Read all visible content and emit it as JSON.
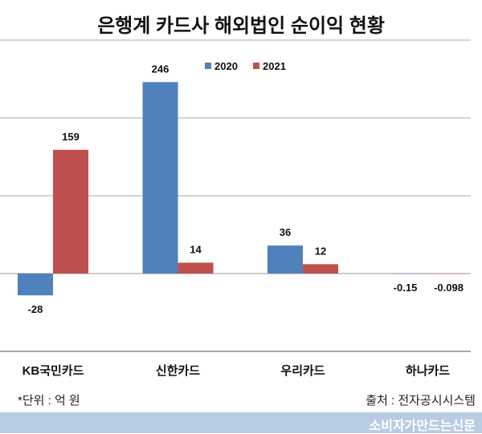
{
  "chart_data": {
    "type": "bar",
    "title": "은행계 카드사 해외법인 순이익 현황",
    "categories": [
      "KB국민카드",
      "신한카드",
      "우리카드",
      "하나카드"
    ],
    "series": [
      {
        "name": "2020",
        "color": "#4f81bd",
        "values": [
          -28,
          246,
          36,
          -0.15
        ],
        "labels": [
          "-28",
          "246",
          "36",
          "-0.15"
        ]
      },
      {
        "name": "2021",
        "color": "#c0504d",
        "values": [
          159,
          14,
          12,
          -0.098
        ],
        "labels": [
          "159",
          "14",
          "12",
          "-0.098"
        ]
      }
    ],
    "ylim": [
      -100,
      300
    ],
    "yticks": [
      -100,
      0,
      100,
      200,
      300
    ],
    "grid": true,
    "legend": "top-center",
    "xlabel": "",
    "ylabel": ""
  },
  "unit_note": "*단위 : 억 원",
  "source_note": "출처 : 전자공시시스템",
  "brand": "소비자가만드는신문"
}
